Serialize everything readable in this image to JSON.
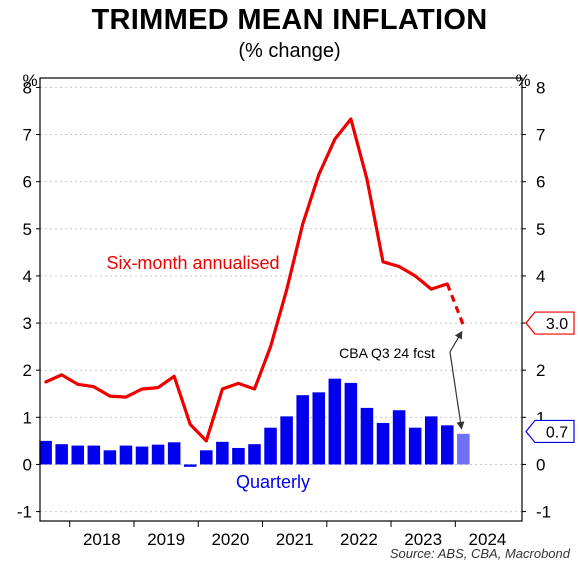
{
  "title": "TRIMMED MEAN INFLATION",
  "subtitle": "(% change)",
  "source": "Source: ABS, CBA, Macrobond",
  "chart_data": {
    "type": "bar",
    "title": "TRIMMED MEAN INFLATION",
    "subtitle": "(% change)",
    "y_unit_left": "%",
    "y_unit_right": "%",
    "ylim": [
      -1.2,
      8.2
    ],
    "yticks": [
      -1,
      0,
      1,
      2,
      3,
      4,
      5,
      6,
      7,
      8
    ],
    "grid": true,
    "x_labels": [
      "2018",
      "2019",
      "2020",
      "2021",
      "2022",
      "2023",
      "2024"
    ],
    "quarters": [
      "2017Q3",
      "2017Q4",
      "2018Q1",
      "2018Q2",
      "2018Q3",
      "2018Q4",
      "2019Q1",
      "2019Q2",
      "2019Q3",
      "2019Q4",
      "2020Q1",
      "2020Q2",
      "2020Q3",
      "2020Q4",
      "2021Q1",
      "2021Q2",
      "2021Q3",
      "2021Q4",
      "2022Q1",
      "2022Q2",
      "2022Q3",
      "2022Q4",
      "2023Q1",
      "2023Q2",
      "2023Q3",
      "2023Q4",
      "2024Q1",
      "2024Q2",
      "2024Q3"
    ],
    "series": [
      {
        "name": "Quarterly",
        "type": "bar",
        "color": "#0000ee",
        "forecast_color": "#6f6ff7",
        "values": [
          0.5,
          0.43,
          0.4,
          0.4,
          0.3,
          0.4,
          0.38,
          0.42,
          0.47,
          -0.05,
          0.3,
          0.48,
          0.35,
          0.43,
          0.78,
          1.02,
          1.47,
          1.53,
          1.82,
          1.73,
          1.2,
          0.88,
          1.15,
          0.78,
          1.02,
          0.83
        ],
        "forecast_values": [
          0.65
        ]
      },
      {
        "name": "Six-month annualised",
        "type": "line",
        "color": "#ee0000",
        "values": [
          1.75,
          1.9,
          1.7,
          1.65,
          1.45,
          1.43,
          1.6,
          1.63,
          1.87,
          0.85,
          0.5,
          1.6,
          1.72,
          1.6,
          2.5,
          3.7,
          5.1,
          6.15,
          6.9,
          7.33,
          6.05,
          4.3,
          4.2,
          4.0,
          3.72,
          3.83
        ],
        "forecast_values": [
          3.83,
          2.95
        ]
      }
    ],
    "annotations": [
      {
        "text": "CBA Q3 24 fcst",
        "points_to": [
          "Six-month annualised forecast",
          "Quarterly forecast"
        ]
      },
      {
        "text": "Six-month annualised",
        "color": "#ee0000"
      },
      {
        "text": "Quarterly",
        "color": "#0000ee"
      }
    ],
    "end_labels": [
      {
        "text": "3.0",
        "value": 3.0,
        "color": "#ee0000"
      },
      {
        "text": "0.7",
        "value": 0.7,
        "color": "#0000ee"
      }
    ]
  }
}
